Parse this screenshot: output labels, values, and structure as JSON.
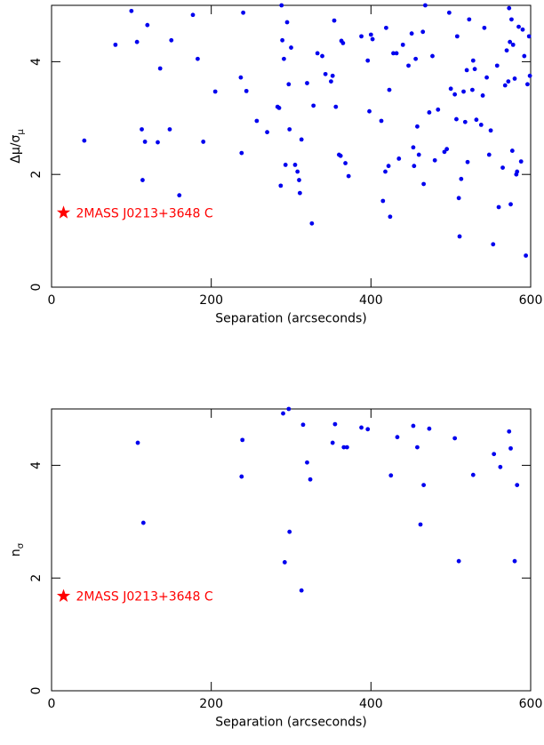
{
  "chart_data": [
    {
      "type": "scatter",
      "xlabel": "Separation (arcseconds)",
      "ylabel": "Δμ/σ",
      "ylabel_subscript": "μ",
      "xlim": [
        0,
        600
      ],
      "ylim": [
        0,
        5
      ],
      "xticks": [
        0,
        200,
        400,
        600
      ],
      "yticks": [
        0,
        2,
        4
      ],
      "color": "#0000ee",
      "x": [
        41,
        80,
        100,
        107,
        113,
        114,
        117,
        120,
        133,
        136,
        148,
        150,
        177,
        183,
        190,
        160,
        205,
        237,
        238,
        240,
        244,
        257,
        270,
        283,
        285,
        287,
        288,
        289,
        291,
        293,
        295,
        297,
        298,
        300,
        305,
        308,
        310,
        311,
        313,
        320,
        326,
        328,
        333,
        339,
        343,
        350,
        352,
        354,
        356,
        360,
        362,
        363,
        365,
        368,
        372,
        388,
        396,
        398,
        400,
        402,
        413,
        415,
        418,
        419,
        422,
        423,
        424,
        428,
        432,
        435,
        440,
        447,
        451,
        453,
        454,
        456,
        458,
        460,
        465,
        466,
        468,
        473,
        477,
        480,
        484,
        492,
        495,
        498,
        500,
        505,
        507,
        508,
        510,
        511,
        513,
        516,
        518,
        520,
        521,
        523,
        527,
        528,
        530,
        532,
        538,
        540,
        542,
        545,
        548,
        550,
        553,
        558,
        560,
        565,
        568,
        570,
        572,
        573,
        574,
        575,
        576,
        577,
        578,
        580,
        582,
        583,
        585,
        588,
        590,
        592,
        594,
        596,
        598,
        599
      ],
      "values": [
        2.6,
        4.3,
        4.9,
        4.35,
        2.8,
        1.9,
        2.58,
        4.65,
        2.57,
        3.88,
        2.8,
        4.38,
        4.83,
        4.05,
        2.58,
        1.63,
        3.47,
        3.72,
        2.38,
        4.87,
        3.48,
        2.95,
        2.75,
        3.2,
        3.18,
        1.8,
        5.0,
        4.38,
        4.05,
        2.17,
        4.7,
        3.6,
        2.8,
        4.25,
        2.17,
        2.05,
        1.9,
        1.67,
        2.62,
        3.62,
        1.13,
        3.22,
        4.15,
        4.1,
        3.78,
        3.65,
        3.75,
        4.73,
        3.2,
        2.35,
        2.33,
        4.37,
        4.33,
        2.2,
        1.97,
        4.45,
        4.02,
        3.12,
        4.48,
        4.4,
        2.95,
        1.53,
        2.05,
        4.6,
        2.15,
        3.5,
        1.25,
        4.15,
        4.15,
        2.28,
        4.3,
        3.93,
        4.5,
        2.48,
        2.15,
        4.05,
        2.85,
        2.35,
        4.53,
        1.83,
        5.0,
        3.1,
        4.1,
        2.25,
        3.15,
        2.4,
        2.45,
        4.87,
        3.52,
        3.42,
        2.98,
        4.45,
        1.58,
        0.9,
        1.92,
        3.47,
        2.93,
        3.85,
        2.22,
        4.75,
        3.5,
        4.02,
        3.87,
        2.97,
        2.88,
        3.4,
        4.6,
        3.72,
        2.35,
        2.78,
        0.76,
        3.93,
        1.42,
        2.12,
        3.58,
        4.2,
        3.65,
        4.95,
        4.35,
        1.47,
        4.75,
        2.42,
        4.3,
        3.7,
        2.0,
        2.05,
        4.62,
        2.23,
        4.57,
        4.1,
        0.56,
        3.6,
        4.45,
        3.75
      ],
      "highlight": {
        "label": "2MASS J0213+3648 C",
        "x": 15,
        "y": 1.32,
        "color": "#ff0000"
      }
    },
    {
      "type": "scatter",
      "xlabel": "Separation (arcseconds)",
      "ylabel": "n",
      "ylabel_subscript": "σ",
      "xlim": [
        0,
        600
      ],
      "ylim": [
        0,
        5
      ],
      "xticks": [
        0,
        200,
        400,
        600
      ],
      "yticks": [
        0,
        2,
        4
      ],
      "color": "#0000ee",
      "x": [
        108,
        115,
        238,
        239,
        290,
        292,
        297,
        298,
        313,
        315,
        320,
        324,
        352,
        355,
        366,
        370,
        388,
        396,
        425,
        433,
        453,
        458,
        462,
        466,
        473,
        505,
        510,
        528,
        554,
        562,
        573,
        575,
        580,
        583
      ],
      "values": [
        4.4,
        2.98,
        3.8,
        4.45,
        4.92,
        2.28,
        5.0,
        2.82,
        1.78,
        4.72,
        4.05,
        3.75,
        4.4,
        4.73,
        4.32,
        4.32,
        4.67,
        4.64,
        3.82,
        4.5,
        4.7,
        4.32,
        2.95,
        3.65,
        4.65,
        4.48,
        2.3,
        3.83,
        4.2,
        3.97,
        4.6,
        4.3,
        2.3,
        3.65
      ],
      "highlight": {
        "label": "2MASS J0213+3648 C",
        "x": 15,
        "y": 1.68,
        "color": "#ff0000"
      }
    }
  ]
}
